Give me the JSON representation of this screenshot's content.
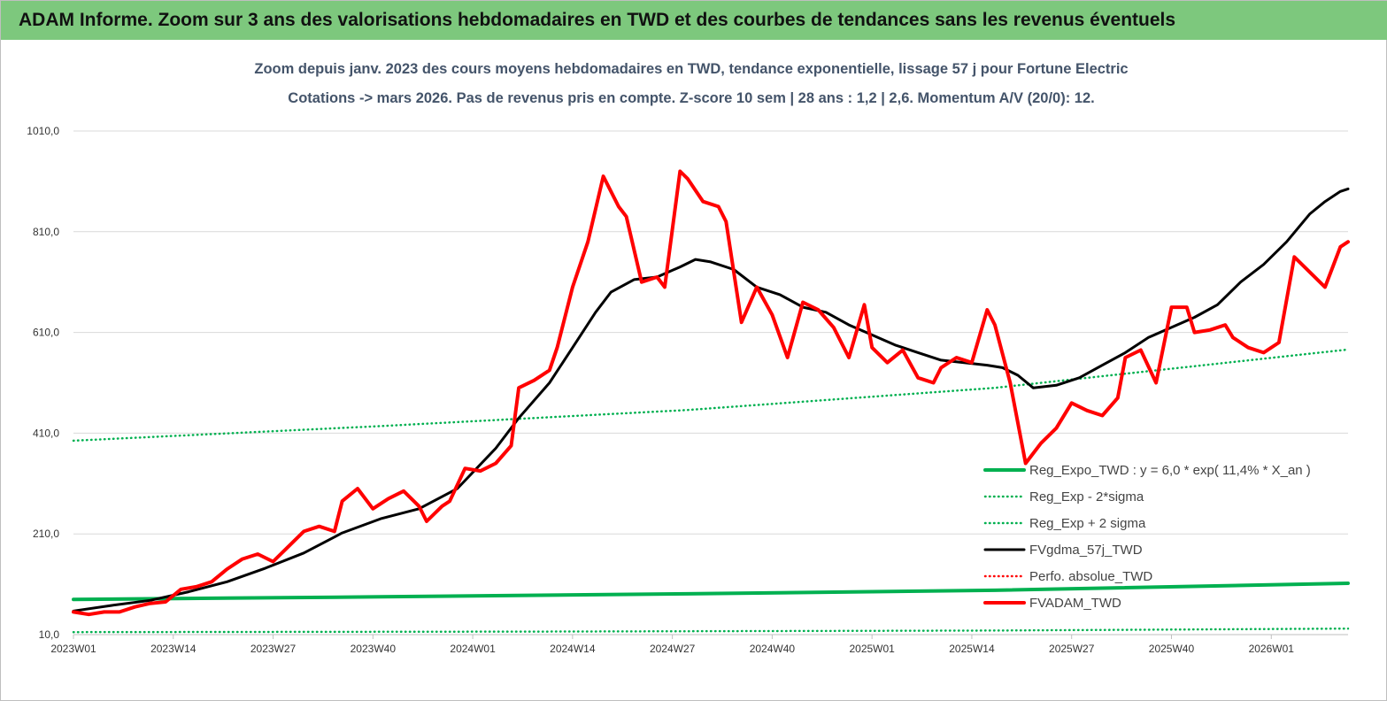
{
  "header": {
    "title": "ADAM Informe. Zoom sur 3 ans des valorisations hebdomadaires en TWD et des courbes de tendances sans les revenus éventuels"
  },
  "chart_data": {
    "type": "line",
    "title_line1": "Zoom depuis janv. 2023 des cours moyens hebdomadaires en TWD, tendance exponentielle, lissage 57 j pour Fortune Electric",
    "title_line2": "Cotations -> mars 2026. Pas de revenus pris en compte. Z-score 10 sem | 28 ans : 1,2 | 2,6. Momentum A/V (20/0): 12.",
    "ylim": [
      10,
      1010
    ],
    "y_ticks": [
      "1010,0",
      "810,0",
      "610,0",
      "410,0",
      "210,0",
      "10,0"
    ],
    "x_ticks": [
      "2023W01",
      "2023W14",
      "2023W27",
      "2023W40",
      "2024W01",
      "2024W14",
      "2024W27",
      "2024W40",
      "2025W01",
      "2025W14",
      "2025W27",
      "2025W40",
      "2026W01"
    ],
    "x_range_weeks": [
      0,
      166
    ],
    "series": [
      {
        "name": "Reg_Expo_TWD : y = 6,0 * exp( 11,4% *  X_an )",
        "color": "#00b050",
        "style": "solid-thick",
        "points": [
          [
            0,
            80
          ],
          [
            40,
            85
          ],
          [
            80,
            91
          ],
          [
            120,
            98
          ],
          [
            166,
            112
          ]
        ]
      },
      {
        "name": "Reg_Exp - 2*sigma",
        "color": "#00b050",
        "style": "dotted",
        "points": [
          [
            0,
            15
          ],
          [
            60,
            16
          ],
          [
            120,
            18
          ],
          [
            166,
            22
          ]
        ]
      },
      {
        "name": "Reg_Exp + 2 sigma",
        "color": "#00b050",
        "style": "dotted",
        "points": [
          [
            0,
            395
          ],
          [
            40,
            424
          ],
          [
            80,
            456
          ],
          [
            120,
            500
          ],
          [
            166,
            576
          ]
        ]
      },
      {
        "name": "FVgdma_57j_TWD",
        "color": "#000000",
        "style": "solid",
        "points": [
          [
            0,
            57
          ],
          [
            5,
            68
          ],
          [
            10,
            78
          ],
          [
            15,
            95
          ],
          [
            20,
            115
          ],
          [
            25,
            142
          ],
          [
            30,
            172
          ],
          [
            35,
            212
          ],
          [
            40,
            240
          ],
          [
            45,
            260
          ],
          [
            50,
            300
          ],
          [
            55,
            380
          ],
          [
            58,
            440
          ],
          [
            62,
            510
          ],
          [
            65,
            580
          ],
          [
            68,
            650
          ],
          [
            70,
            690
          ],
          [
            73,
            715
          ],
          [
            76,
            720
          ],
          [
            79,
            740
          ],
          [
            81,
            755
          ],
          [
            83,
            750
          ],
          [
            86,
            735
          ],
          [
            89,
            700
          ],
          [
            92,
            685
          ],
          [
            95,
            660
          ],
          [
            98,
            650
          ],
          [
            101,
            625
          ],
          [
            104,
            605
          ],
          [
            107,
            585
          ],
          [
            110,
            570
          ],
          [
            113,
            555
          ],
          [
            116,
            550
          ],
          [
            119,
            545
          ],
          [
            121,
            540
          ],
          [
            123,
            525
          ],
          [
            125,
            500
          ],
          [
            128,
            505
          ],
          [
            131,
            520
          ],
          [
            134,
            545
          ],
          [
            137,
            570
          ],
          [
            140,
            600
          ],
          [
            143,
            620
          ],
          [
            146,
            640
          ],
          [
            149,
            665
          ],
          [
            152,
            710
          ],
          [
            155,
            745
          ],
          [
            158,
            790
          ],
          [
            161,
            845
          ],
          [
            163,
            870
          ],
          [
            165,
            890
          ],
          [
            166,
            895
          ]
        ]
      },
      {
        "name": "Perfo. absolue_TWD",
        "color": "#ff0000",
        "style": "dotted",
        "points": []
      },
      {
        "name": "FVADAM_TWD",
        "color": "#ff0000",
        "style": "solid-thick",
        "points": [
          [
            0,
            55
          ],
          [
            2,
            50
          ],
          [
            4,
            55
          ],
          [
            6,
            55
          ],
          [
            8,
            65
          ],
          [
            10,
            72
          ],
          [
            12,
            75
          ],
          [
            14,
            100
          ],
          [
            16,
            105
          ],
          [
            18,
            115
          ],
          [
            20,
            140
          ],
          [
            22,
            160
          ],
          [
            24,
            170
          ],
          [
            26,
            155
          ],
          [
            28,
            185
          ],
          [
            30,
            215
          ],
          [
            32,
            225
          ],
          [
            34,
            215
          ],
          [
            35,
            275
          ],
          [
            37,
            300
          ],
          [
            39,
            260
          ],
          [
            41,
            280
          ],
          [
            43,
            295
          ],
          [
            45,
            265
          ],
          [
            46,
            235
          ],
          [
            48,
            265
          ],
          [
            49,
            275
          ],
          [
            51,
            340
          ],
          [
            53,
            335
          ],
          [
            55,
            350
          ],
          [
            57,
            385
          ],
          [
            58,
            500
          ],
          [
            60,
            515
          ],
          [
            62,
            535
          ],
          [
            63,
            580
          ],
          [
            65,
            700
          ],
          [
            67,
            790
          ],
          [
            69,
            920
          ],
          [
            71,
            860
          ],
          [
            72,
            840
          ],
          [
            74,
            710
          ],
          [
            76,
            720
          ],
          [
            77,
            700
          ],
          [
            79,
            930
          ],
          [
            80,
            915
          ],
          [
            82,
            870
          ],
          [
            84,
            860
          ],
          [
            85,
            830
          ],
          [
            87,
            630
          ],
          [
            89,
            700
          ],
          [
            91,
            645
          ],
          [
            93,
            560
          ],
          [
            95,
            670
          ],
          [
            97,
            655
          ],
          [
            99,
            620
          ],
          [
            101,
            560
          ],
          [
            103,
            665
          ],
          [
            104,
            580
          ],
          [
            106,
            550
          ],
          [
            108,
            575
          ],
          [
            110,
            520
          ],
          [
            112,
            510
          ],
          [
            113,
            540
          ],
          [
            115,
            560
          ],
          [
            117,
            550
          ],
          [
            119,
            655
          ],
          [
            120,
            625
          ],
          [
            122,
            510
          ],
          [
            124,
            350
          ],
          [
            126,
            390
          ],
          [
            128,
            420
          ],
          [
            130,
            470
          ],
          [
            132,
            455
          ],
          [
            134,
            445
          ],
          [
            136,
            480
          ],
          [
            137,
            560
          ],
          [
            139,
            575
          ],
          [
            141,
            510
          ],
          [
            143,
            660
          ],
          [
            145,
            660
          ],
          [
            146,
            610
          ],
          [
            148,
            615
          ],
          [
            150,
            625
          ],
          [
            151,
            600
          ],
          [
            153,
            580
          ],
          [
            155,
            570
          ],
          [
            157,
            590
          ],
          [
            159,
            760
          ],
          [
            161,
            730
          ],
          [
            163,
            700
          ],
          [
            164,
            740
          ],
          [
            165,
            780
          ],
          [
            166,
            790
          ]
        ]
      }
    ],
    "legend_order": [
      0,
      1,
      2,
      3,
      4,
      5
    ]
  }
}
